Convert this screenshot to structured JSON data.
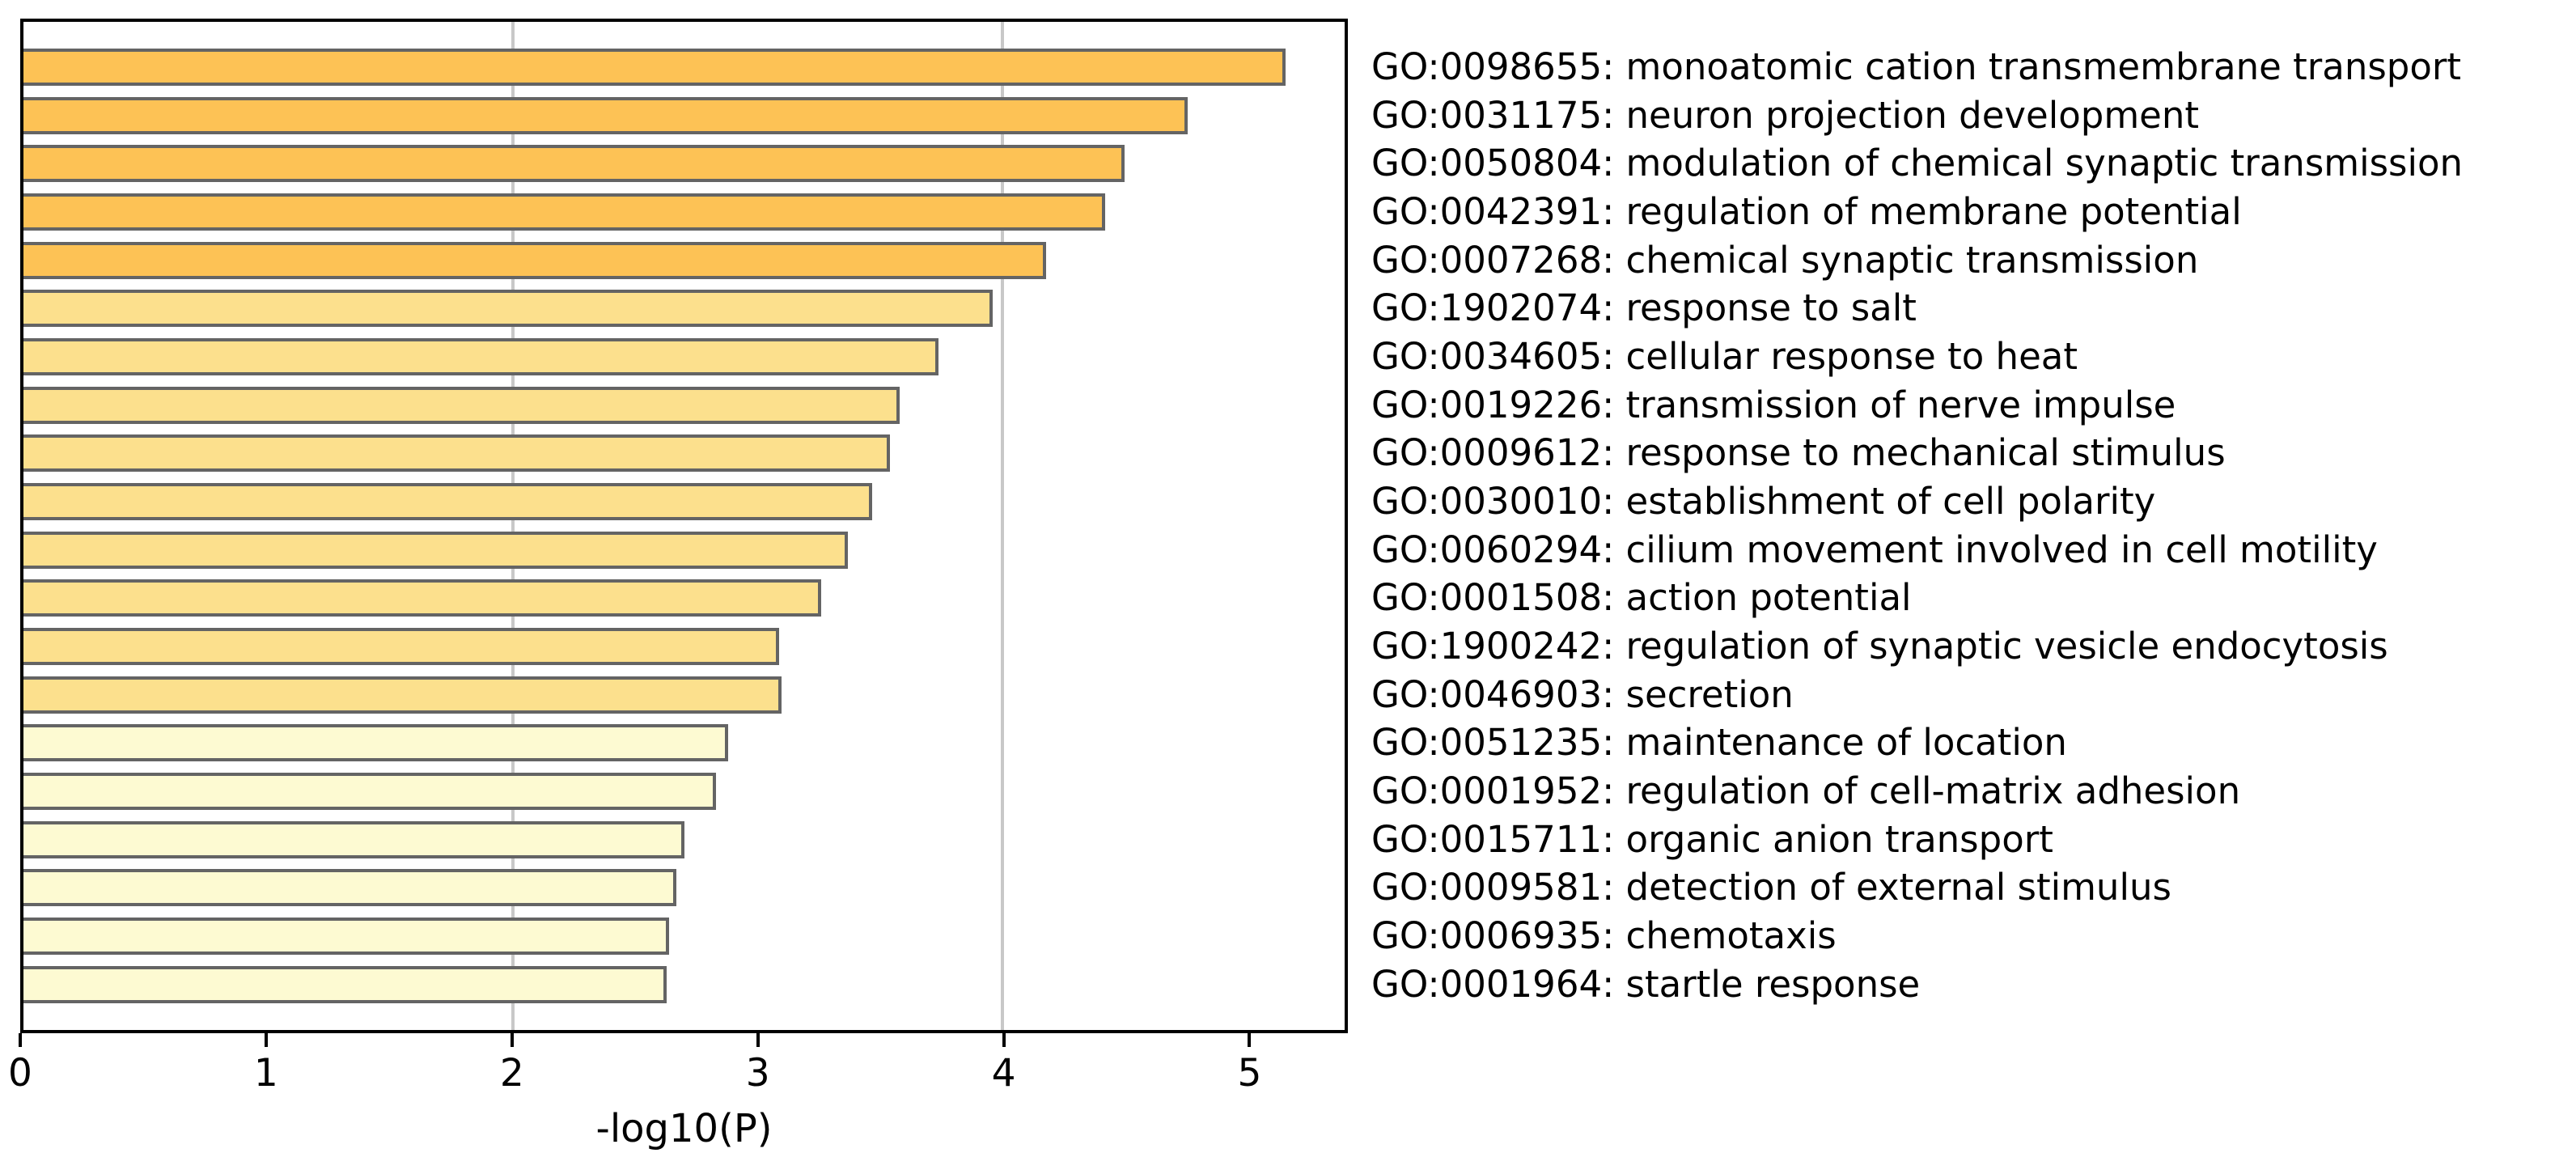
{
  "chart_data": {
    "type": "bar",
    "orientation": "horizontal",
    "title": "",
    "xlabel": "-log10(P)",
    "xlim": [
      0,
      5.4
    ],
    "x_ticks": [
      "0",
      "1",
      "2",
      "3",
      "4",
      "5"
    ],
    "x_tick_values": [
      0,
      1,
      2,
      3,
      4,
      5
    ],
    "gridlines_x": [
      2,
      4
    ],
    "grid_on": true,
    "legend": "none",
    "categories": [
      "GO:0098655: monoatomic cation transmembrane transport",
      "GO:0031175: neuron projection development",
      "GO:0050804: modulation of chemical synaptic transmission",
      "GO:0042391: regulation of membrane potential",
      "GO:0007268: chemical synaptic transmission",
      "GO:1902074: response to salt",
      "GO:0034605: cellular response to heat",
      "GO:0019226: transmission of nerve impulse",
      "GO:0009612: response to mechanical stimulus",
      "GO:0030010: establishment of cell polarity",
      "GO:0060294: cilium movement involved in cell motility",
      "GO:0001508: action potential",
      "GO:1900242: regulation of synaptic vesicle endocytosis",
      "GO:0046903: secretion",
      "GO:0051235: maintenance of location",
      "GO:0001952: regulation of cell-matrix adhesion",
      "GO:0015711: organic anion transport",
      "GO:0009581: detection of external stimulus",
      "GO:0006935: chemotaxis",
      "GO:0001964: startle response"
    ],
    "values": [
      5.16,
      4.76,
      4.5,
      4.42,
      4.18,
      3.96,
      3.74,
      3.58,
      3.54,
      3.47,
      3.37,
      3.26,
      3.09,
      3.1,
      2.88,
      2.83,
      2.7,
      2.67,
      2.64,
      2.63
    ],
    "bar_colors": [
      "#FDC255",
      "#FDC255",
      "#FDC255",
      "#FDC255",
      "#FDC255",
      "#FCE08D",
      "#FCE08D",
      "#FCE08D",
      "#FCE08D",
      "#FCE08D",
      "#FCE08D",
      "#FCE08D",
      "#FCE08D",
      "#FCE08D",
      "#FDFAD2",
      "#FDFAD2",
      "#FDFAD2",
      "#FDFAD2",
      "#FDFAD2",
      "#FDFAD2"
    ],
    "colors": {
      "bar_border": "#646464",
      "grid": "#C8C8C8",
      "axis": "#000000",
      "text": "#000000",
      "background": "#ffffff"
    }
  }
}
